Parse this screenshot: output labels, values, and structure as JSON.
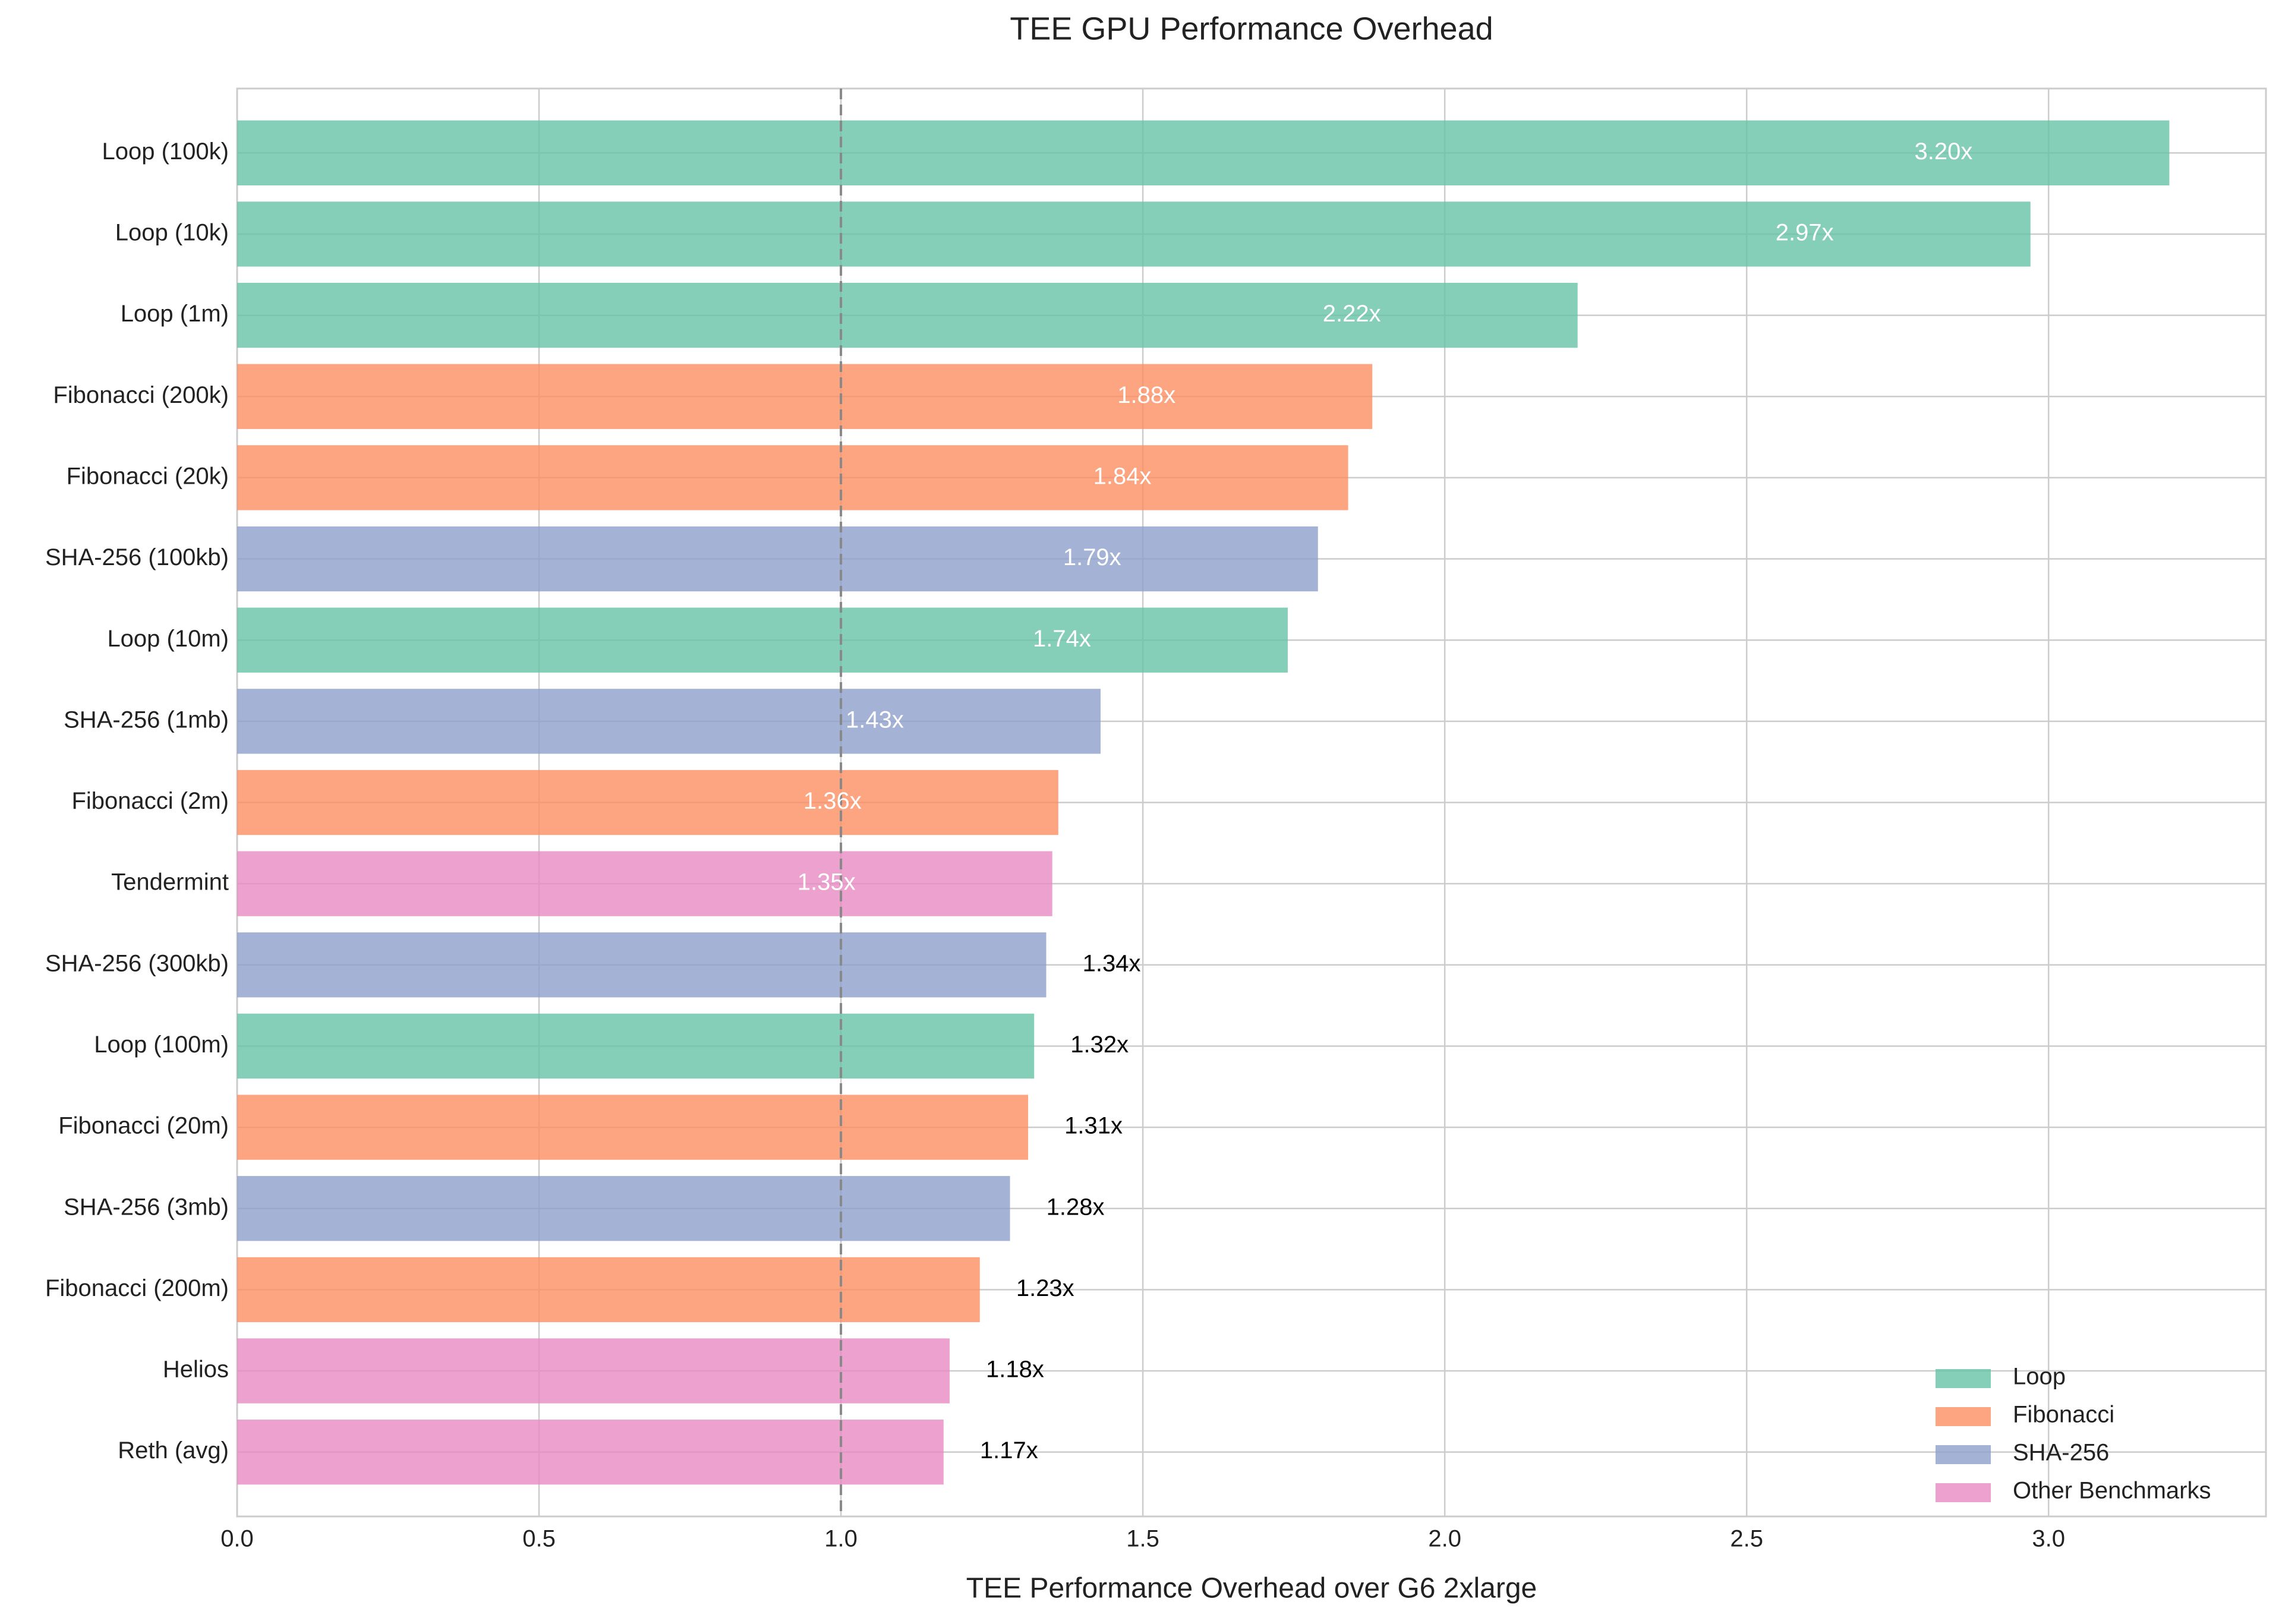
{
  "chart_data": {
    "type": "barh",
    "title": "TEE GPU Performance Overhead",
    "x_label": "TEE Performance Overhead over G6 2xlarge",
    "categories": [
      "Loop (100k)",
      "Loop (10k)",
      "Loop (1m)",
      "Fibonacci (200k)",
      "Fibonacci (20k)",
      "SHA-256 (100kb)",
      "Loop (10m)",
      "SHA-256 (1mb)",
      "Fibonacci (2m)",
      "Tendermint",
      "SHA-256 (300kb)",
      "Loop (100m)",
      "Fibonacci (20m)",
      "SHA-256 (3mb)",
      "Fibonacci (200m)",
      "Helios",
      "Reth (avg)"
    ],
    "series": [
      {
        "name": "Loop",
        "color": "#66c2a5",
        "values": [
          3.2,
          2.97,
          2.22,
          null,
          null,
          null,
          1.74,
          null,
          null,
          null,
          null,
          1.32,
          null,
          null,
          null,
          null,
          null
        ],
        "value_labels": [
          "3.20x",
          "2.97x",
          "2.22x",
          null,
          null,
          null,
          "1.74x",
          null,
          null,
          null,
          null,
          "1.32x",
          null,
          null,
          null,
          null,
          null
        ]
      },
      {
        "name": "Fibonacci",
        "color": "#fc8d62",
        "values": [
          null,
          null,
          null,
          1.88,
          1.84,
          null,
          null,
          null,
          1.36,
          null,
          null,
          null,
          1.31,
          null,
          1.23,
          null,
          null
        ],
        "value_labels": [
          null,
          null,
          null,
          "1.88x",
          "1.84x",
          null,
          null,
          null,
          "1.36x",
          null,
          null,
          null,
          "1.31x",
          null,
          "1.23x",
          null,
          null
        ]
      },
      {
        "name": "SHA-256",
        "color": "#8da0cb",
        "values": [
          null,
          null,
          null,
          null,
          null,
          1.79,
          null,
          1.43,
          null,
          null,
          1.34,
          null,
          null,
          1.28,
          null,
          null,
          null
        ],
        "value_labels": [
          null,
          null,
          null,
          null,
          null,
          "1.79x",
          null,
          "1.43x",
          null,
          null,
          "1.34x",
          null,
          null,
          "1.28x",
          null,
          null,
          null
        ]
      },
      {
        "name": "Other Benchmarks",
        "color": "#e78ac3",
        "values": [
          null,
          null,
          null,
          null,
          null,
          null,
          null,
          null,
          null,
          1.35,
          null,
          null,
          null,
          null,
          null,
          1.18,
          1.17
        ],
        "value_labels": [
          null,
          null,
          null,
          null,
          null,
          null,
          null,
          null,
          null,
          "1.35x",
          null,
          null,
          null,
          null,
          null,
          "1.18x",
          "1.17x"
        ]
      }
    ],
    "xlim": [
      0,
      3.36
    ],
    "xticks": [
      {
        "value": 0,
        "label": "0.0"
      },
      0.5,
      {
        "value": 1,
        "label": "1.0"
      },
      1.5,
      {
        "value": 2,
        "label": "2.0"
      },
      2.5,
      {
        "value": 3,
        "label": "3.0"
      }
    ],
    "reference_line": 1,
    "grid": true,
    "legend": "lower right"
  }
}
